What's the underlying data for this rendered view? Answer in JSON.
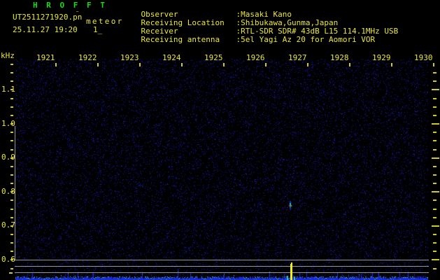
{
  "header": {
    "title": "H R O F F T",
    "filename": "UT2511271920.pn",
    "filename_artifact": "¨",
    "tag": "meteor",
    "datetime": "25.11.27 19:20",
    "counter": "1_",
    "separator": ":",
    "info": [
      {
        "label": "Observer",
        "value": "Masaki Kano"
      },
      {
        "label": "Receiving Location",
        "value": "Shibukawa,Gunma,Japan"
      },
      {
        "label": "Receiver",
        "value": "RTL-SDR SDR# 43dB L15 114.1MHz USB"
      },
      {
        "label": "Receiving antenna",
        "value": "5el Yagi Az 20 for Aomori VOR"
      }
    ]
  },
  "colors": {
    "background": "#000000",
    "text_yellow": "#e9e63a",
    "tick_yellow": "#cfc92a",
    "title_green": "#19dc19",
    "frame_gray": "#989898",
    "noise_blue": "#2020a0",
    "trace_blue": "#1c2cd4",
    "trace_cyan": "#3cc0d4",
    "spike_yellow": "#f2ef1a",
    "echo_red": "#d42828",
    "echo_green": "#28c828",
    "echo_cyan": "#00c6de",
    "echo_blue": "#1b2bb0"
  },
  "chart_data": {
    "type": "heatmap",
    "subtype": "HRO radio-meteor spectrogram, 10-minute frame",
    "title": "HROFFT spectrogram UT 2025.11.27 19:20-19:30",
    "x_axis": {
      "unit": "UT time (hhmm)",
      "tick_labels": [
        "1921",
        "1922",
        "1923",
        "1924",
        "1925",
        "1926",
        "1927",
        "1928",
        "1929",
        "1930"
      ],
      "range": [
        "19:20",
        "19:30"
      ]
    },
    "y_axis": {
      "label": "kHz",
      "tick_labels": [
        "1.1",
        "1.0",
        "0.9",
        "0.8",
        "0.7",
        "0.6"
      ],
      "tick_values_khz": [
        1.1,
        1.0,
        0.9,
        0.8,
        0.7,
        0.6
      ],
      "minor_ticks_per_major": 4,
      "visible_range_khz": [
        0.55,
        1.19
      ]
    },
    "background": "sparse dark-blue noise speckle on black",
    "echoes": [
      {
        "time_ut": "19:26:34",
        "minutes_after_1900": 26.57,
        "freq_khz": 0.758,
        "appearance": "single small point echo: blue/cyan column with red-green core"
      }
    ],
    "level_graph": {
      "description": "jagged blue noise-level trace along bottom edge",
      "reference_line_count": 3,
      "spike": {
        "time_ut": "19:26:36",
        "minutes_after_1900": 26.6,
        "color": "yellow",
        "meaning": "meteor echo level spike"
      }
    }
  }
}
